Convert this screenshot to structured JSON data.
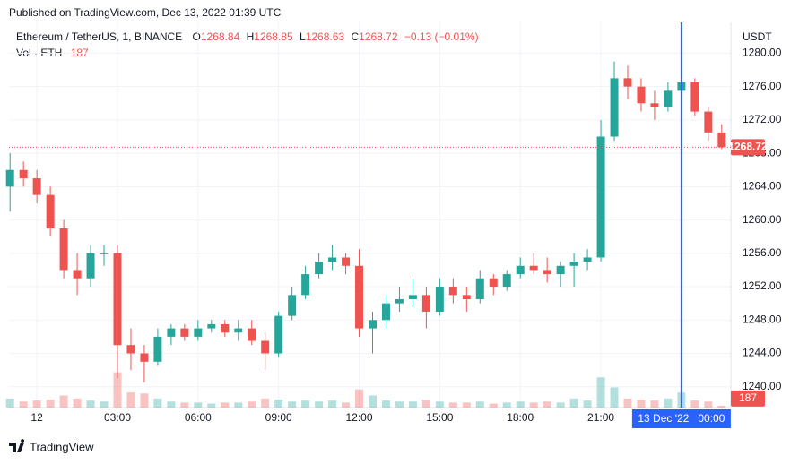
{
  "published": "Published on TradingView.com, Dec 13, 2022 01:39 UTC",
  "footer": "TradingView",
  "chart_data": {
    "type": "candlestick",
    "title": "Ethereum / TetherUS, 1, BINANCE",
    "ohlc": [
      {
        "label": "O",
        "value": 1268.84
      },
      {
        "label": "H",
        "value": 1268.85
      },
      {
        "label": "L",
        "value": 1268.63
      },
      {
        "label": "C",
        "value": 1268.72
      }
    ],
    "change": "−0.13 (−0.01%)",
    "volume_label": "Vol · ETH",
    "y_axis_label": "USDT",
    "up_color": "#26a69a",
    "down_color": "#ef5350",
    "grid": true,
    "x": [
      -1,
      -0.5,
      0,
      0.5,
      1,
      1.5,
      2,
      2.5,
      3,
      3.5,
      4,
      4.5,
      5,
      5.5,
      6,
      6.5,
      7,
      7.5,
      8,
      8.5,
      9,
      9.5,
      10,
      10.5,
      11,
      11.5,
      12,
      12.5,
      13,
      13.5,
      14,
      14.5,
      15,
      15.5,
      16,
      16.5,
      17,
      17.5,
      18,
      18.5,
      19,
      19.5,
      20,
      20.5,
      21,
      21.5,
      22,
      22.5,
      23,
      23.5,
      24,
      24.5,
      25,
      25.5
    ],
    "open": [
      1264,
      1266,
      1265,
      1263,
      1259,
      1254,
      1253,
      1256,
      1256,
      1245,
      1244,
      1243,
      1246,
      1247,
      1246,
      1247,
      1247.5,
      1246.5,
      1247,
      1245.5,
      1244,
      1248.5,
      1251,
      1253.5,
      1255,
      1255.5,
      1254.5,
      1247,
      1248,
      1250,
      1250.5,
      1251,
      1249,
      1252,
      1251,
      1250.5,
      1253,
      1252,
      1253.5,
      1254.5,
      1254,
      1253.5,
      1254.5,
      1255,
      1255.5,
      1270,
      1277,
      1276,
      1274,
      1273.5,
      1275.5,
      1276.5,
      1273,
      1270.5
    ],
    "high": [
      1268,
      1267,
      1266,
      1264,
      1260,
      1256,
      1257,
      1257,
      1257,
      1247,
      1245,
      1247,
      1247.5,
      1247.5,
      1248,
      1248,
      1248,
      1248,
      1248,
      1246.5,
      1249,
      1252,
      1254.5,
      1256,
      1257,
      1256,
      1256.5,
      1249,
      1251,
      1252,
      1253,
      1252,
      1253,
      1253,
      1252,
      1254,
      1253.5,
      1254,
      1255.5,
      1256,
      1255.5,
      1255,
      1256,
      1256.5,
      1272,
      1279,
      1278.5,
      1277,
      1275.5,
      1276.5,
      1278.5,
      1277,
      1273.5,
      1271.5
    ],
    "low": [
      1261,
      1264,
      1262,
      1258,
      1253,
      1251,
      1252,
      1254.5,
      1241,
      1242,
      1240.5,
      1242.5,
      1245,
      1245.5,
      1245.5,
      1246.5,
      1246,
      1245.5,
      1245,
      1242,
      1243.5,
      1248,
      1250.5,
      1253,
      1254,
      1253.5,
      1246,
      1244,
      1247,
      1249,
      1249.5,
      1247,
      1248.5,
      1250,
      1249,
      1250,
      1251,
      1251.5,
      1253,
      1253.5,
      1252.5,
      1252,
      1252,
      1254,
      1255,
      1269.5,
      1274.5,
      1273,
      1272,
      1273,
      1274,
      1272.5,
      1269.5,
      1268.5
    ],
    "close": [
      1266,
      1265,
      1263,
      1259,
      1254,
      1253,
      1256,
      1256,
      1245,
      1244,
      1243,
      1246,
      1247,
      1246,
      1247,
      1247.5,
      1246.5,
      1247,
      1245.5,
      1244,
      1248.5,
      1251,
      1253.5,
      1255,
      1255.5,
      1254.5,
      1247,
      1248,
      1250,
      1250.5,
      1251,
      1249,
      1252,
      1251,
      1250.5,
      1253,
      1252,
      1253.5,
      1254.5,
      1254,
      1253.5,
      1254.5,
      1255,
      1255.5,
      1270,
      1277,
      1276,
      1274,
      1273.5,
      1275.5,
      1276.5,
      1273,
      1270.5,
      1268.72
    ],
    "volumes": [
      900,
      600,
      700,
      800,
      1200,
      900,
      700,
      600,
      3500,
      1500,
      1400,
      900,
      600,
      500,
      500,
      400,
      500,
      500,
      600,
      900,
      800,
      600,
      700,
      600,
      700,
      500,
      1800,
      1200,
      700,
      600,
      600,
      800,
      600,
      500,
      500,
      600,
      400,
      500,
      600,
      500,
      600,
      500,
      900,
      700,
      3000,
      2000,
      900,
      800,
      700,
      900,
      1500,
      700,
      600,
      187
    ],
    "vol_ylim": [
      0,
      4000
    ],
    "xlim": [
      -1.04,
      25.84
    ],
    "xticks": [
      {
        "value": 0,
        "label": "12"
      },
      {
        "value": 3,
        "label": "03:00"
      },
      {
        "value": 6,
        "label": "06:00"
      },
      {
        "value": 9,
        "label": "09:00"
      },
      {
        "value": 12,
        "label": "12:00"
      },
      {
        "value": 15,
        "label": "15:00"
      },
      {
        "value": 18,
        "label": "18:00"
      },
      {
        "value": 21,
        "label": "21:00"
      }
    ],
    "ylim": [
      1237.5,
      1283.7
    ],
    "yticks": [
      {
        "value": 1240,
        "label": "1240.00"
      },
      {
        "value": 1244,
        "label": "1244.00"
      },
      {
        "value": 1248,
        "label": "1248.00"
      },
      {
        "value": 1252,
        "label": "1252.00"
      },
      {
        "value": 1256,
        "label": "1256.00"
      },
      {
        "value": 1260,
        "label": "1260.00"
      },
      {
        "value": 1264,
        "label": "1264.00"
      },
      {
        "value": 1268,
        "label": "1268.00"
      },
      {
        "value": 1272,
        "label": "1272.00"
      },
      {
        "value": 1276,
        "label": "1276.00"
      },
      {
        "value": 1280,
        "label": "1280.00"
      }
    ],
    "crosshair": {
      "x": 24,
      "label": "13 Dec '22   00:00"
    }
  }
}
